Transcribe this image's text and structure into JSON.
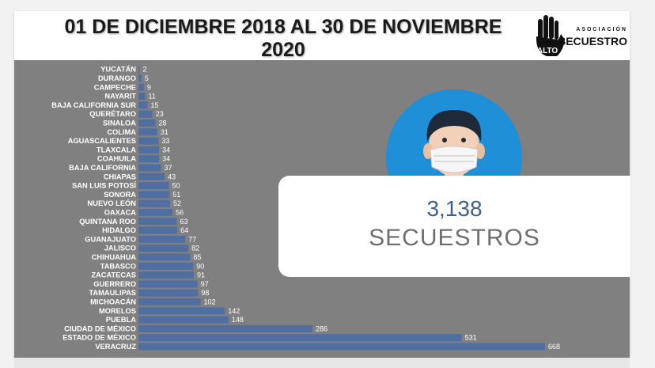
{
  "header": {
    "title": "01 DE DICIEMBRE 2018 AL 30 DE NOVIEMBRE 2020",
    "logo_small": "ASOCIACIÓN",
    "logo_alto": "ALTO",
    "logo_main": "AL SECUESTRO",
    "logo_icon": "raised-hand-icon"
  },
  "summary": {
    "total": "3,138",
    "caption": "SECUESTROS",
    "icon": "masked-person-icon"
  },
  "colors": {
    "panel": "#808080",
    "bar": "#4f6fa3",
    "total_text": "#3f5f8c",
    "avatar_circle": "#1f8fd8"
  },
  "chart_data": {
    "type": "bar",
    "orientation": "horizontal",
    "categories": [
      "YUCATÁN",
      "DURANGO",
      "CAMPECHE",
      "NAYARIT",
      "BAJA CALIFORNIA SUR",
      "QUERÉTARO",
      "SINALOA",
      "COLIMA",
      "AGUASCALIENTES",
      "TLAXCALA",
      "COAHUILA",
      "BAJA CALIFORNIA",
      "CHIAPAS",
      "SAN LUIS POTOSÍ",
      "SONORA",
      "NUEVO LEÓN",
      "OAXACA",
      "QUINTANA ROO",
      "HIDALGO",
      "GUANAJUATO",
      "JALISCO",
      "CHIHUAHUA",
      "TABASCO",
      "ZACATECAS",
      "GUERRERO",
      "TAMAULIPAS",
      "MICHOACÁN",
      "MORELOS",
      "PUEBLA",
      "CIUDAD DE MÉXICO",
      "ESTADO DE MÉXICO",
      "VERACRUZ"
    ],
    "values": [
      2,
      5,
      9,
      11,
      15,
      23,
      28,
      31,
      33,
      34,
      34,
      37,
      43,
      50,
      51,
      52,
      56,
      63,
      64,
      77,
      82,
      85,
      90,
      91,
      97,
      98,
      102,
      142,
      148,
      286,
      531,
      668
    ],
    "title": "",
    "xlabel": "",
    "ylabel": "",
    "grid": false,
    "legend": "none",
    "data_labels": true
  }
}
